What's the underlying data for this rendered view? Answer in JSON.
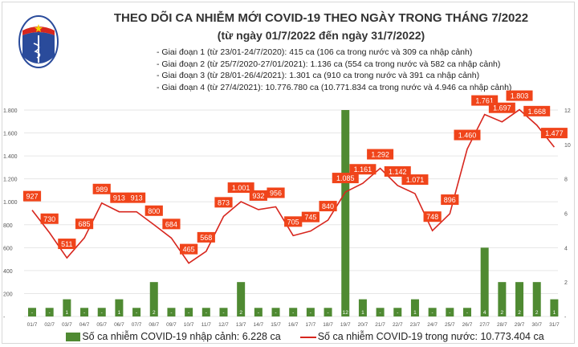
{
  "header": {
    "logo_text": "BỘ Y TẾ · MINISTRY OF HEALTH",
    "title": "THEO DÕI CA NHIỄM MỚI COVID-19 THEO NGÀY TRONG THÁNG 7/2022",
    "subtitle": "(từ ngày 01/7/2022 đến ngày 31/7/2022)",
    "notes": [
      "- Giai đoạn 1 (từ 23/01-24/7/2020): 415 ca (106 ca trong nước và 309 ca nhập cảnh)",
      "- Giai đoạn 2 (từ 25/7/2020-27/01/2021): 1.136 ca (554 ca trong nước và 582 ca nhập cảnh)",
      "- Giai đoạn 3 (từ 28/01-26/4/2021): 1.301 ca (910 ca trong nước và 391 ca nhập cảnh)",
      "- Giai đoạn 4 (từ 27/4/2021): 10.776.780 ca (10.771.834 ca trong nước và 4.946 ca nhập cảnh)"
    ]
  },
  "chart_data": {
    "type": "bar+line",
    "categories": [
      "01/7",
      "02/7",
      "03/7",
      "04/7",
      "05/7",
      "06/7",
      "07/7",
      "08/7",
      "09/7",
      "10/7",
      "11/7",
      "12/7",
      "13/7",
      "14/7",
      "15/7",
      "16/7",
      "17/7",
      "18/7",
      "19/7",
      "20/7",
      "21/7",
      "22/7",
      "23/7",
      "24/7",
      "25/7",
      "26/7",
      "27/7",
      "28/7",
      "29/7",
      "30/7",
      "31/7"
    ],
    "series": [
      {
        "name": "Số ca nhiễm COVID-19 nhập cảnh: 6.228 ca",
        "type": "bar",
        "axis": "right",
        "color": "#4f8a32",
        "values": [
          0,
          0,
          1,
          0,
          0,
          1,
          0,
          2,
          0,
          0,
          0,
          0,
          2,
          0,
          0,
          0,
          0,
          0,
          12,
          1,
          0,
          0,
          1,
          0,
          0,
          0,
          4,
          2,
          2,
          2,
          1
        ],
        "labels": [
          "-",
          "-",
          "1",
          "-",
          "-",
          "1",
          "-",
          "2",
          "-",
          "-",
          "-",
          "-",
          "2",
          "-",
          "-",
          "-",
          "-",
          "-",
          "12",
          "1",
          "-",
          "-",
          "1",
          "-",
          "-",
          "-",
          "4",
          "2",
          "2",
          "2",
          "1"
        ]
      },
      {
        "name": "Số ca nhiễm COVID-19 trong nước: 10.773.404 ca",
        "type": "line",
        "axis": "left",
        "color": "#d7261e",
        "values": [
          927,
          730,
          511,
          685,
          989,
          913,
          913,
          800,
          684,
          465,
          568,
          873,
          1001,
          932,
          956,
          705,
          745,
          840,
          1085,
          1161,
          1292,
          1142,
          1071,
          748,
          896,
          1460,
          1761,
          1697,
          1803,
          1668,
          1477
        ],
        "labels": [
          "927",
          "730",
          "511",
          "685",
          "989",
          "913",
          "913",
          "800",
          "684",
          "465",
          "568",
          "873",
          "1.001",
          "932",
          "956",
          "705",
          "745",
          "840",
          "1.085",
          "1.161",
          "1.292",
          "1.142",
          "1.071",
          "748",
          "896",
          "1.460",
          "1.761",
          "1.697",
          "1.803",
          "1.668",
          "1.477"
        ]
      }
    ],
    "left_axis": {
      "range": [
        0,
        1800
      ],
      "ticks": [
        "-",
        "200",
        "400",
        "600",
        "800",
        "1.000",
        "1.200",
        "1.400",
        "1.600",
        "1.800"
      ]
    },
    "right_axis": {
      "range": [
        0,
        12
      ],
      "ticks": [
        "-",
        "2",
        "4",
        "6",
        "8",
        "10",
        "12"
      ]
    },
    "grid": true,
    "legend_position": "bottom",
    "label_box_color": "#f0441a"
  }
}
